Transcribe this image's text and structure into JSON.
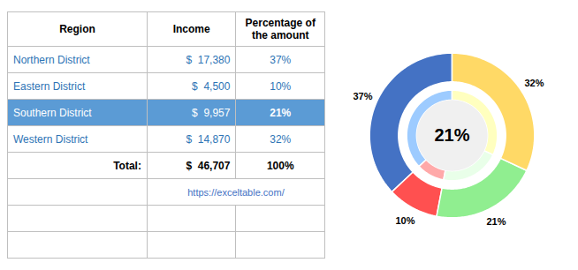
{
  "chart_data": [
    {
      "type": "table",
      "category_label": "Region",
      "categories": [
        "Northern District",
        "Eastern District",
        "Southern District",
        "Western District"
      ],
      "series": [
        {
          "name": "Income",
          "values": [
            17380,
            4500,
            9957,
            14870
          ],
          "value_labels": [
            "$  17,380",
            "$  4,500",
            "$  9,957",
            "$  14,870"
          ]
        },
        {
          "name": "Percentage of\nthe amount",
          "values": [
            37,
            10,
            21,
            32
          ],
          "value_labels": [
            "37%",
            "10%",
            "21%",
            "32%"
          ]
        }
      ],
      "total": {
        "label": "Total:",
        "values": [
          46707,
          100
        ],
        "value_labels": [
          "$  46,707",
          "100%"
        ]
      },
      "highlight": {
        "category": "Southern District",
        "color": "#5B9BD5",
        "text_color": "#ffffff"
      },
      "text_color": "#2E74B5",
      "grid_color": "#BFBFBF",
      "empty_rows": 3,
      "annotations": [
        {
          "text": "https://exceltable.com/",
          "color": "#4472C4"
        }
      ]
    },
    {
      "type": "pie",
      "values": [
        37,
        10,
        21,
        32
      ],
      "value_labels": [
        "37%",
        "10%",
        "21%",
        "32%"
      ],
      "colors": [
        "#4472C4",
        "#FF5050",
        "#90EE90",
        "#FFD966"
      ],
      "data_labels": true,
      "annotations": [
        {
          "text": "21%",
          "background": "#F0F0F0"
        }
      ]
    }
  ]
}
